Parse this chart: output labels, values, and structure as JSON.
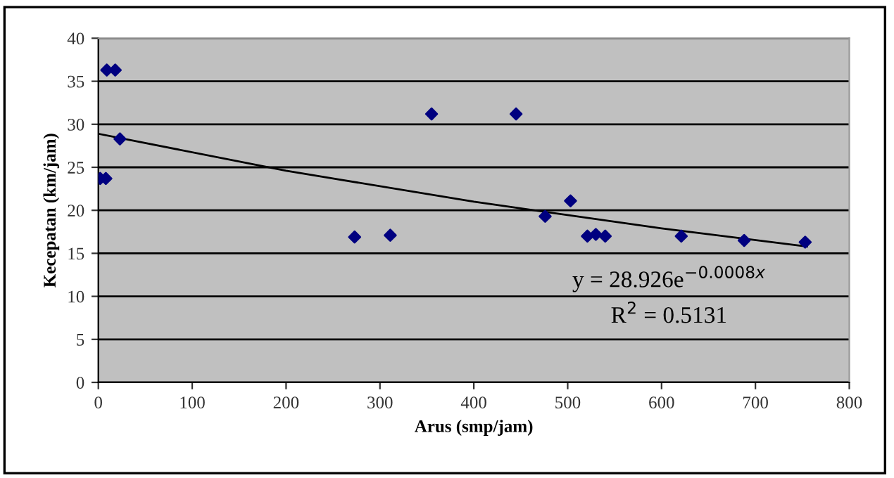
{
  "chart_data": {
    "type": "scatter",
    "xlabel": "Arus (smp/jam)",
    "ylabel": "Kecepatan (km/jam)",
    "xlim": [
      0,
      800
    ],
    "xticks": [
      0,
      100,
      200,
      300,
      400,
      500,
      600,
      700,
      800
    ],
    "ylim": [
      0,
      40
    ],
    "yticks": [
      0,
      5,
      10,
      15,
      20,
      25,
      30,
      35,
      40
    ],
    "grid": "y",
    "legend": false,
    "series": [
      {
        "marker": "diamond",
        "color": "#000080",
        "x": [
          2,
          8,
          9,
          18,
          23,
          273,
          311,
          355,
          445,
          476,
          503,
          521,
          530,
          540,
          621,
          688,
          753
        ],
        "values": [
          23.7,
          23.7,
          36.3,
          36.3,
          28.3,
          16.9,
          17.1,
          31.2,
          31.2,
          19.3,
          21.1,
          17,
          17.2,
          17,
          17,
          16.5,
          16.3
        ]
      },
      {
        "type": "line",
        "color": "#000000",
        "x": [
          0,
          200,
          400,
          600,
          755
        ],
        "values": [
          28.9,
          24.6,
          21.0,
          17.9,
          15.8
        ]
      }
    ],
    "annotations": [
      "y = 28.926e$^{−0.0008x}$",
      "R$^{2}$ = 0.5131"
    ]
  }
}
